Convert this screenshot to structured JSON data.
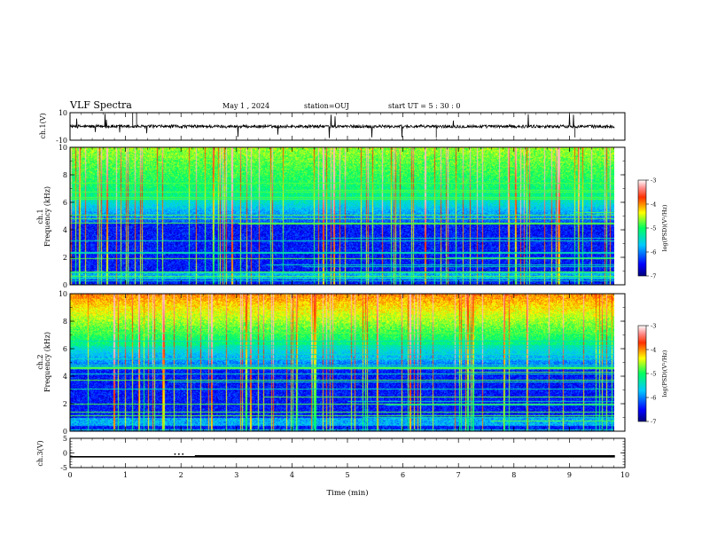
{
  "header": {
    "title": "VLF Spectra",
    "date": "May 1 , 2024",
    "station": "station=OUJ",
    "start": "start UT = 5 : 30 : 0"
  },
  "chart_data": [
    {
      "type": "line",
      "id": "ch1-waveform",
      "ylabel": "ch.1(V)",
      "yticks": [
        "10",
        "-10"
      ],
      "ylim": [
        -10,
        10
      ],
      "xlim": [
        0,
        10
      ],
      "baseline": 0,
      "data_extent_min": 9.82
    },
    {
      "type": "heatmap",
      "id": "ch1-spectrogram",
      "ylabel": "ch.1\nFrequency (kHz)",
      "ylabel_lines": [
        "ch.1",
        "Frequency (kHz)"
      ],
      "yticks": [
        "0",
        "2",
        "4",
        "6",
        "8",
        "10"
      ],
      "ylim": [
        0,
        10
      ],
      "xlim": [
        0,
        10
      ],
      "colorbar": {
        "label": "log(PSD)(V²/Hz)",
        "ticks": [
          "-3",
          "-4",
          "-5",
          "-6",
          "-7"
        ],
        "range": [
          -7,
          -3
        ]
      }
    },
    {
      "type": "heatmap",
      "id": "ch2-spectrogram",
      "ylabel": "ch.2\nFrequency (kHz)",
      "ylabel_lines": [
        "ch.2",
        "Frequency (kHz)"
      ],
      "yticks": [
        "0",
        "2",
        "4",
        "6",
        "8",
        "10"
      ],
      "ylim": [
        0,
        10
      ],
      "xlim": [
        0,
        10
      ],
      "colorbar": {
        "label": "log(PSD)(V²/Hz)",
        "ticks": [
          "-3",
          "-4",
          "-5",
          "-6",
          "-7"
        ],
        "range": [
          -7,
          -3
        ]
      }
    },
    {
      "type": "line",
      "id": "ch3-waveform",
      "ylabel": "ch.3(V)",
      "yticks": [
        "5",
        "0",
        "-5"
      ],
      "ylim": [
        -5,
        5
      ],
      "xlim": [
        0,
        10
      ],
      "level": -1.3,
      "xlabel": "Time (min)",
      "xticks": [
        "0",
        "1",
        "2",
        "3",
        "4",
        "5",
        "6",
        "7",
        "8",
        "9",
        "10"
      ]
    }
  ]
}
